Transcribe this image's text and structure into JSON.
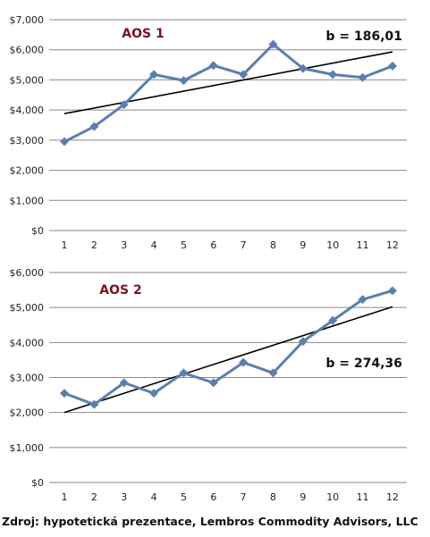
{
  "colors": {
    "series": "#5b7fad",
    "trend": "#000000",
    "grid": "#8a8a8a",
    "label": "#7a1222"
  },
  "source_note": "Zdroj: hypotetická prezentace, Lembros Commodity Advisors, LLC",
  "chart_data": [
    {
      "type": "line",
      "title": "AOS 1",
      "annotation": "b = 186,01",
      "categories": [
        "1",
        "2",
        "3",
        "4",
        "5",
        "6",
        "7",
        "8",
        "9",
        "10",
        "11",
        "12"
      ],
      "ylim": [
        0,
        7000
      ],
      "yticks": [
        "$0",
        "$1,000",
        "$2,000",
        "$3,000",
        "$4,000",
        "$5,000",
        "$6,000",
        "$7,000"
      ],
      "series": [
        {
          "values": [
            2950,
            3450,
            4180,
            5180,
            4980,
            5480,
            5180,
            6180,
            5380,
            5180,
            5080,
            5460
          ],
          "marker": "diamond"
        }
      ],
      "trendline": [
        3880,
        5930
      ],
      "grid": true
    },
    {
      "type": "line",
      "title": "AOS 2",
      "annotation": "b = 274,36",
      "categories": [
        "1",
        "2",
        "3",
        "4",
        "5",
        "6",
        "7",
        "8",
        "9",
        "10",
        "11",
        "12"
      ],
      "ylim": [
        0,
        6000
      ],
      "yticks": [
        "$0",
        "$1,000",
        "$2,000",
        "$3,000",
        "$4,000",
        "$5,000",
        "$6,000"
      ],
      "series": [
        {
          "values": [
            2550,
            2230,
            2850,
            2550,
            3130,
            2850,
            3430,
            3130,
            4030,
            4630,
            5230,
            5480
          ],
          "marker": "diamond"
        }
      ],
      "trendline": [
        2000,
        5020
      ],
      "grid": true
    }
  ]
}
